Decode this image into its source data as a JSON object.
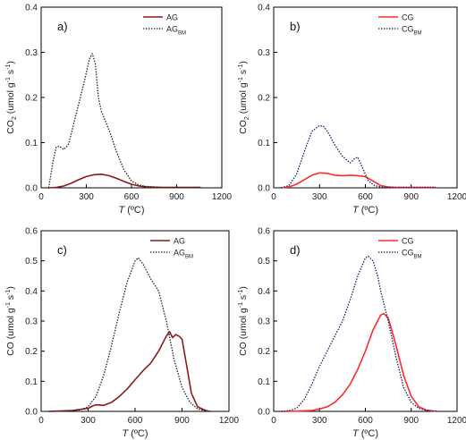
{
  "chart_data": [
    {
      "type": "line",
      "panel_label": "a)",
      "ylabel_main": "CO",
      "ylabel_sub": "2",
      "ylabel_unit": " (umol g",
      "ylabel_exp1": "-1",
      "ylabel_mid": " s",
      "ylabel_exp2": "-1",
      "ylabel_end": ")",
      "xlabel_italic": "T",
      "xlabel_rest": " (ºC)",
      "xlim": [
        0,
        1200
      ],
      "ylim": [
        0,
        0.4
      ],
      "xticks": [
        0,
        300,
        600,
        900,
        1200
      ],
      "yticks": [
        0.0,
        0.1,
        0.2,
        0.3,
        0.4
      ],
      "ytick_labels": [
        "0.0",
        "0.1",
        "0.2",
        "0.3",
        "0.4"
      ],
      "xtick_labels": [
        "0",
        "300",
        "600",
        "900",
        "1200"
      ],
      "legend_position": "top-right",
      "series": [
        {
          "name": "AG",
          "name_sub": "",
          "color": "#8b1a1a",
          "style": "solid",
          "x": [
            50,
            100,
            150,
            200,
            250,
            300,
            350,
            400,
            450,
            500,
            550,
            600,
            650,
            700,
            800,
            900,
            1000,
            1060
          ],
          "y": [
            0,
            0.001,
            0.004,
            0.01,
            0.018,
            0.025,
            0.029,
            0.03,
            0.027,
            0.021,
            0.014,
            0.008,
            0.004,
            0.002,
            0.001,
            0.001,
            0.001,
            0.001
          ]
        },
        {
          "name": "AG",
          "name_sub": "BM",
          "color": "#222222",
          "style": "dotted",
          "x": [
            50,
            80,
            100,
            120,
            150,
            180,
            200,
            230,
            260,
            290,
            320,
            340,
            360,
            380,
            400,
            430,
            460,
            500,
            550,
            600,
            650,
            700,
            750,
            800,
            900,
            1000,
            1060
          ],
          "y": [
            0,
            0.06,
            0.09,
            0.092,
            0.085,
            0.095,
            0.12,
            0.16,
            0.2,
            0.24,
            0.285,
            0.297,
            0.275,
            0.2,
            0.17,
            0.145,
            0.12,
            0.08,
            0.04,
            0.015,
            0.006,
            0.003,
            0.002,
            0.001,
            0.001,
            0.001,
            0.001
          ]
        }
      ]
    },
    {
      "type": "line",
      "panel_label": "b)",
      "ylabel_main": "CO",
      "ylabel_sub": "2",
      "ylabel_unit": " (umol g",
      "ylabel_exp1": "-1",
      "ylabel_mid": " s",
      "ylabel_exp2": "-1",
      "ylabel_end": ")",
      "xlabel_italic": "T",
      "xlabel_rest": " (ºC)",
      "xlim": [
        0,
        1200
      ],
      "ylim": [
        0,
        0.4
      ],
      "xticks": [
        0,
        300,
        600,
        900,
        1200
      ],
      "yticks": [
        0.0,
        0.1,
        0.2,
        0.3,
        0.4
      ],
      "ytick_labels": [
        "0.0",
        "0.1",
        "0.2",
        "0.3",
        "0.4"
      ],
      "xtick_labels": [
        "0",
        "300",
        "600",
        "900",
        "1200"
      ],
      "legend_position": "top-right",
      "series": [
        {
          "name": "CG",
          "name_sub": "",
          "color": "#ff2a2a",
          "style": "solid",
          "x": [
            50,
            100,
            150,
            200,
            250,
            300,
            350,
            400,
            450,
            500,
            550,
            600,
            650,
            700,
            750,
            800,
            900,
            1000,
            1060
          ],
          "y": [
            0,
            0.002,
            0.008,
            0.018,
            0.028,
            0.033,
            0.032,
            0.028,
            0.027,
            0.028,
            0.027,
            0.025,
            0.015,
            0.005,
            0.002,
            0.001,
            0.001,
            0.001,
            0.001
          ]
        },
        {
          "name": "CG",
          "name_sub": "BM",
          "color": "#1a1a6e",
          "style": "dotted",
          "x": [
            50,
            100,
            150,
            200,
            250,
            300,
            330,
            360,
            400,
            450,
            500,
            530,
            550,
            580,
            620,
            660,
            700,
            750,
            800,
            900,
            1000,
            1060
          ],
          "y": [
            0,
            0.005,
            0.03,
            0.08,
            0.125,
            0.138,
            0.135,
            0.12,
            0.095,
            0.07,
            0.055,
            0.065,
            0.068,
            0.045,
            0.015,
            0.005,
            0.002,
            0.001,
            0.001,
            0.001,
            0.001,
            0.001
          ]
        }
      ]
    },
    {
      "type": "line",
      "panel_label": "c)",
      "ylabel_main": "CO",
      "ylabel_sub": "",
      "ylabel_unit": " (umol g",
      "ylabel_exp1": "-1",
      "ylabel_mid": " s",
      "ylabel_exp2": "-1",
      "ylabel_end": ")",
      "xlabel_italic": "T",
      "xlabel_rest": " (ºC)",
      "xlim": [
        0,
        1200
      ],
      "ylim": [
        0,
        0.6
      ],
      "xticks": [
        0,
        300,
        600,
        900,
        1200
      ],
      "yticks": [
        0.0,
        0.1,
        0.2,
        0.3,
        0.4,
        0.5,
        0.6
      ],
      "ytick_labels": [
        "0.0",
        "0.1",
        "0.2",
        "0.3",
        "0.4",
        "0.5",
        "0.6"
      ],
      "xtick_labels": [
        "0",
        "300",
        "600",
        "900",
        "1200"
      ],
      "legend_position": "top-right",
      "series": [
        {
          "name": "AG",
          "name_sub": "",
          "color": "#8b1a1a",
          "style": "solid",
          "x": [
            50,
            100,
            200,
            300,
            330,
            350,
            400,
            450,
            500,
            550,
            600,
            650,
            700,
            750,
            800,
            820,
            840,
            860,
            880,
            900,
            930,
            960,
            1000,
            1050,
            1080
          ],
          "y": [
            0,
            0.001,
            0.003,
            0.01,
            0.018,
            0.022,
            0.02,
            0.03,
            0.05,
            0.075,
            0.105,
            0.135,
            0.16,
            0.2,
            0.25,
            0.265,
            0.245,
            0.255,
            0.25,
            0.24,
            0.15,
            0.06,
            0.015,
            0.003,
            0
          ]
        },
        {
          "name": "AG",
          "name_sub": "BM",
          "color": "#222222",
          "style": "dotted",
          "x": [
            50,
            150,
            250,
            300,
            350,
            400,
            450,
            500,
            550,
            600,
            620,
            650,
            700,
            750,
            800,
            850,
            900,
            950,
            1000,
            1050,
            1080
          ],
          "y": [
            0,
            0.001,
            0.005,
            0.015,
            0.05,
            0.12,
            0.22,
            0.33,
            0.43,
            0.5,
            0.51,
            0.49,
            0.44,
            0.4,
            0.3,
            0.17,
            0.08,
            0.03,
            0.008,
            0.002,
            0
          ]
        }
      ]
    },
    {
      "type": "line",
      "panel_label": "d)",
      "ylabel_main": "CO",
      "ylabel_sub": "",
      "ylabel_unit": " (umol g",
      "ylabel_exp1": "-1",
      "ylabel_mid": " s",
      "ylabel_exp2": "-1",
      "ylabel_end": ")",
      "xlabel_italic": "T",
      "xlabel_rest": " (ºC)",
      "xlim": [
        0,
        1200
      ],
      "ylim": [
        0,
        0.6
      ],
      "xticks": [
        0,
        300,
        600,
        900,
        1200
      ],
      "yticks": [
        0.0,
        0.1,
        0.2,
        0.3,
        0.4,
        0.5,
        0.6
      ],
      "ytick_labels": [
        "0.0",
        "0.1",
        "0.2",
        "0.3",
        "0.4",
        "0.5",
        "0.6"
      ],
      "xtick_labels": [
        "0",
        "300",
        "600",
        "900",
        "1200"
      ],
      "legend_position": "top-right",
      "series": [
        {
          "name": "CG",
          "name_sub": "",
          "color": "#ff2a2a",
          "style": "solid",
          "x": [
            50,
            150,
            250,
            300,
            350,
            400,
            450,
            500,
            550,
            600,
            650,
            700,
            720,
            750,
            800,
            850,
            900,
            950,
            1000,
            1050,
            1070
          ],
          "y": [
            0,
            0.001,
            0.003,
            0.008,
            0.015,
            0.03,
            0.055,
            0.09,
            0.14,
            0.2,
            0.27,
            0.32,
            0.325,
            0.31,
            0.22,
            0.12,
            0.05,
            0.015,
            0.004,
            0.001,
            0
          ]
        },
        {
          "name": "CG",
          "name_sub": "BM",
          "color": "#1a1a6e",
          "style": "dotted",
          "x": [
            50,
            100,
            150,
            200,
            250,
            300,
            350,
            400,
            450,
            500,
            550,
            600,
            620,
            650,
            680,
            700,
            750,
            800,
            850,
            900,
            950,
            1000,
            1050,
            1070
          ],
          "y": [
            0,
            0.002,
            0.01,
            0.04,
            0.09,
            0.15,
            0.2,
            0.25,
            0.3,
            0.37,
            0.45,
            0.51,
            0.515,
            0.5,
            0.45,
            0.4,
            0.3,
            0.18,
            0.08,
            0.03,
            0.01,
            0.003,
            0.001,
            0
          ]
        }
      ]
    }
  ]
}
